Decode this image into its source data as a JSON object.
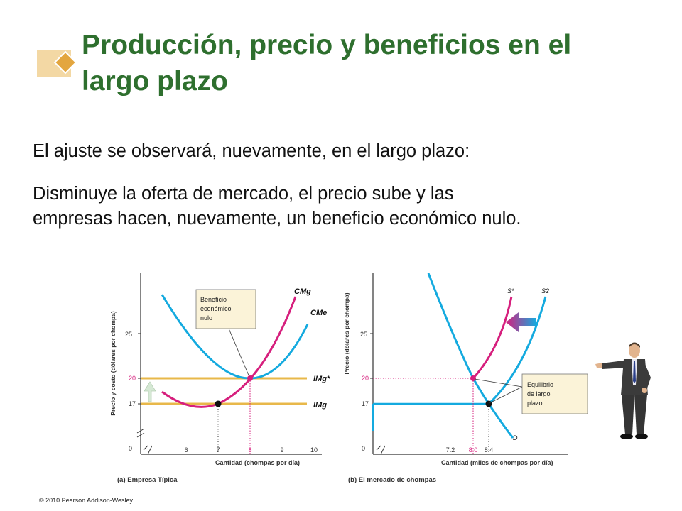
{
  "slide": {
    "title_line1": "Producción, precio y beneficios en el",
    "title_line2": "largo plazo",
    "paragraph1": "El ajuste se observará, nuevamente, en el largo plazo:",
    "paragraph2_line1": "Disminuye la oferta de mercado, el precio sube y las",
    "paragraph2_line2": "empresas hacen, nuevamente, un beneficio económico nulo.",
    "copyright": "© 2010 Pearson Addison-Wesley",
    "accent_color": "#2e6f2e"
  },
  "panel_a": {
    "y_axis_label": "Precio y costo (dólares por chompa)",
    "x_axis_label": "Cantidad (chompas por día)",
    "caption": "(a) Empresa Típica",
    "y_ticks": [
      "25",
      "20",
      "17"
    ],
    "x_ticks": [
      "6",
      "7",
      "8",
      "9",
      "10"
    ],
    "origin": "0",
    "curve_labels": {
      "mc": "CMg",
      "atc": "CMe",
      "mr_star": "IMg*",
      "mr": "IMg"
    },
    "callout": [
      "Beneficio",
      "económico",
      "nulo"
    ]
  },
  "panel_b": {
    "y_axis_label": "Precio (dólares por chompa)",
    "x_axis_label": "Cantidad (miles de chompas por día)",
    "caption": "(b) El mercado de chompas",
    "y_ticks": [
      "25",
      "20",
      "17"
    ],
    "x_ticks": [
      "7.2",
      "8.0",
      "8.4"
    ],
    "origin": "0",
    "curve_labels": {
      "s_star": "S*",
      "s2": "S2",
      "d": "D"
    },
    "callout": [
      "Equilibrio",
      "de largo",
      "plazo"
    ]
  },
  "colors": {
    "cyan": "#14aadf",
    "magenta": "#d61f7d",
    "gold": "#e8b84a",
    "axis": "#333333"
  }
}
